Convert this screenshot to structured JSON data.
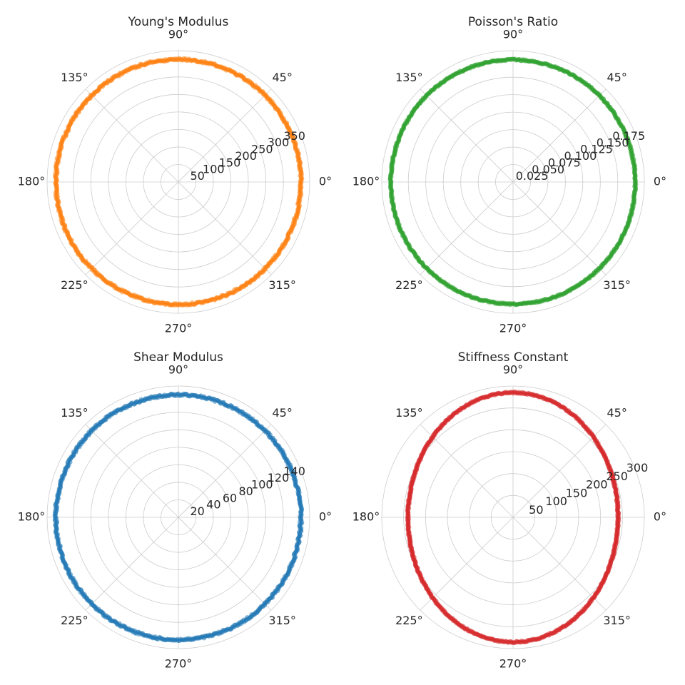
{
  "angle_labels": [
    "0°",
    "45°",
    "90°",
    "135°",
    "180°",
    "225°",
    "270°",
    "315°"
  ],
  "chart_data": [
    {
      "type": "scatter",
      "projection": "polar",
      "title": "Young's Modulus",
      "color": "#ff7f0e",
      "rmax": 375,
      "r_ticks": [
        50,
        100,
        150,
        200,
        250,
        300,
        350
      ],
      "r_tick_labels": [
        "50",
        "100",
        "150",
        "200",
        "250",
        "300",
        "350"
      ],
      "series": [
        {
          "theta_deg": [
            0,
            360
          ],
          "r_mean": 350,
          "r_noise": 3
        }
      ],
      "grid": true
    },
    {
      "type": "scatter",
      "projection": "polar",
      "title": "Poisson's Ratio",
      "color": "#2ca02c",
      "rmax": 0.188,
      "r_ticks": [
        0.025,
        0.05,
        0.075,
        0.1,
        0.125,
        0.15,
        0.175
      ],
      "r_tick_labels": [
        "0.025",
        "0.050",
        "0.075",
        "0.100",
        "0.125",
        "0.150",
        "0.175"
      ],
      "series": [
        {
          "theta_deg": [
            0,
            360
          ],
          "r_mean": 0.175,
          "r_noise": 0.001
        }
      ],
      "grid": true
    },
    {
      "type": "scatter",
      "projection": "polar",
      "title": "Shear Modulus",
      "color": "#1f77b4",
      "rmax": 150,
      "r_ticks": [
        20,
        40,
        60,
        80,
        100,
        120,
        140
      ],
      "r_tick_labels": [
        "20",
        "40",
        "60",
        "80",
        "100",
        "120",
        "140"
      ],
      "series": [
        {
          "theta_deg": [
            0,
            360
          ],
          "r_mean": 140,
          "r_noise": 1.2
        }
      ],
      "grid": true
    },
    {
      "type": "scatter",
      "projection": "polar",
      "title": "Stiffness Constant",
      "color": "#d62728",
      "rmax": 300,
      "r_ticks": [
        50,
        100,
        150,
        200,
        250,
        300
      ],
      "r_tick_labels": [
        "50",
        "100",
        "150",
        "200",
        "250",
        "300"
      ],
      "series": [
        {
          "theta_deg": [
            0,
            360
          ],
          "r_min": 240,
          "r_max": 285,
          "r_noise": 1.5
        }
      ],
      "grid": true
    }
  ]
}
